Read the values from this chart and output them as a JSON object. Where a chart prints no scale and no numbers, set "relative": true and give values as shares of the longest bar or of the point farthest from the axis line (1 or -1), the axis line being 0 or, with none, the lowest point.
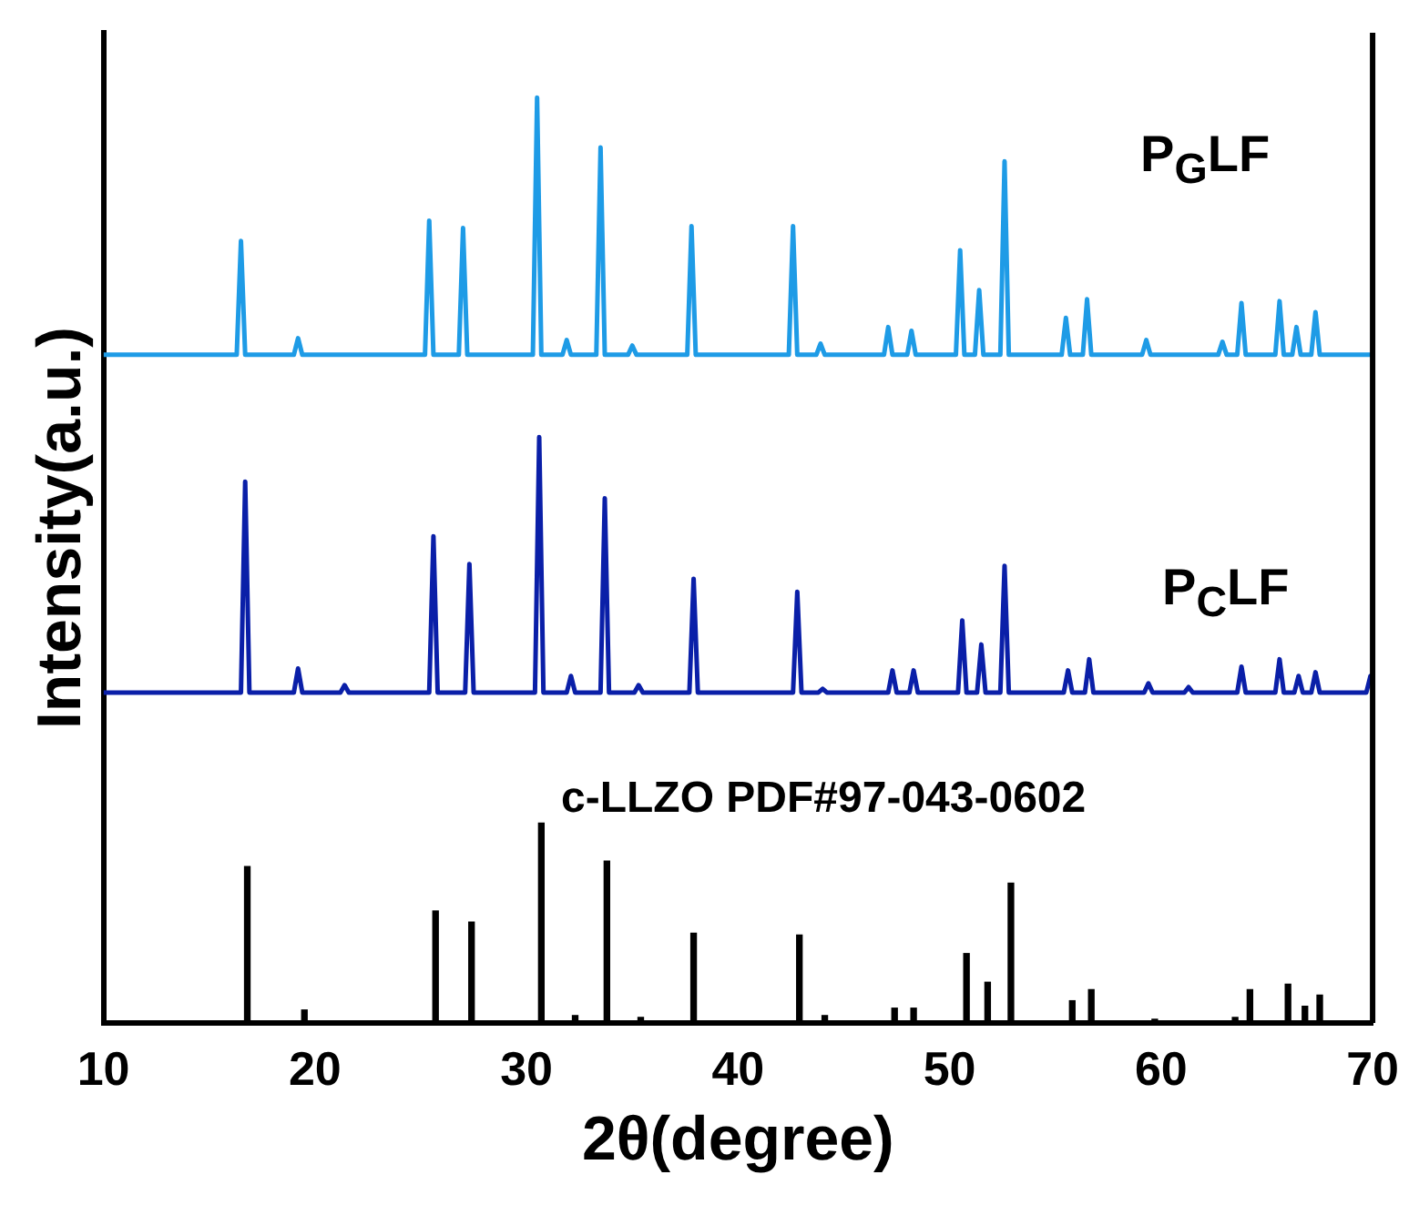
{
  "chart_data": {
    "type": "line",
    "xlabel": "2θ(degree)",
    "ylabel": "Intensity(a.u.)",
    "relative": true,
    "xlim": [
      10,
      70
    ],
    "xticks": [
      10,
      20,
      30,
      40,
      50,
      60,
      70
    ],
    "grid": false,
    "legend": false,
    "marker": "none",
    "line_style": "solid",
    "series": [
      {
        "name": "P$_{G}$LF",
        "color": "#1e9be6",
        "x": [
          10,
          16.3,
          16.5,
          16.7,
          19.0,
          19.2,
          19.4,
          25.2,
          25.4,
          25.6,
          26.8,
          27.0,
          27.2,
          30.3,
          30.5,
          30.7,
          31.7,
          31.9,
          32.1,
          33.3,
          33.5,
          33.7,
          34.8,
          35.0,
          35.2,
          37.6,
          37.8,
          38.0,
          42.4,
          42.6,
          42.8,
          43.7,
          43.9,
          44.1,
          46.9,
          47.1,
          47.3,
          48.0,
          48.2,
          48.4,
          50.3,
          50.5,
          50.7,
          51.2,
          51.4,
          51.6,
          52.4,
          52.6,
          52.8,
          55.3,
          55.5,
          55.7,
          56.3,
          56.5,
          56.7,
          59.1,
          59.3,
          59.5,
          62.7,
          62.9,
          63.1,
          63.6,
          63.8,
          64.0,
          65.4,
          65.6,
          65.8,
          66.2,
          66.4,
          66.6,
          67.1,
          67.3,
          67.5,
          70
        ],
        "values": [
          0.722,
          0.722,
          0.845,
          0.722,
          0.722,
          0.74,
          0.722,
          0.722,
          0.867,
          0.722,
          0.722,
          0.859,
          0.722,
          0.722,
          1,
          0.722,
          0.722,
          0.738,
          0.722,
          0.722,
          0.946,
          0.722,
          0.722,
          0.732,
          0.722,
          0.722,
          0.861,
          0.722,
          0.722,
          0.861,
          0.722,
          0.722,
          0.734,
          0.722,
          0.722,
          0.752,
          0.722,
          0.722,
          0.748,
          0.722,
          0.722,
          0.835,
          0.722,
          0.722,
          0.792,
          0.722,
          0.722,
          0.931,
          0.722,
          0.722,
          0.762,
          0.722,
          0.722,
          0.782,
          0.722,
          0.722,
          0.738,
          0.722,
          0.722,
          0.736,
          0.722,
          0.722,
          0.778,
          0.722,
          0.722,
          0.78,
          0.722,
          0.722,
          0.752,
          0.722,
          0.722,
          0.768,
          0.722,
          0.722
        ]
      },
      {
        "name": "P$_{C}$LF",
        "color": "#0a1fa8",
        "x": [
          10,
          16.5,
          16.7,
          16.9,
          19.0,
          19.2,
          19.4,
          21.2,
          21.4,
          21.6,
          25.4,
          25.6,
          25.8,
          27.1,
          27.3,
          27.5,
          30.4,
          30.6,
          30.8,
          31.9,
          32.1,
          32.3,
          33.5,
          33.7,
          33.9,
          35.1,
          35.3,
          35.5,
          37.7,
          37.9,
          38.1,
          42.6,
          42.8,
          43.0,
          43.8,
          44.0,
          44.2,
          47.1,
          47.3,
          47.5,
          48.1,
          48.3,
          48.5,
          50.4,
          50.6,
          50.8,
          51.3,
          51.5,
          51.7,
          52.4,
          52.6,
          52.8,
          55.4,
          55.6,
          55.8,
          56.4,
          56.6,
          56.8,
          59.2,
          59.4,
          59.6,
          61.1,
          61.3,
          61.5,
          63.6,
          63.8,
          64.0,
          65.4,
          65.6,
          65.8,
          66.3,
          66.5,
          66.7,
          67.1,
          67.3,
          67.5,
          69.7,
          69.9,
          70
        ],
        "values": [
          0.357,
          0.357,
          0.585,
          0.357,
          0.357,
          0.383,
          0.357,
          0.357,
          0.365,
          0.357,
          0.357,
          0.526,
          0.357,
          0.357,
          0.496,
          0.357,
          0.357,
          0.633,
          0.357,
          0.357,
          0.375,
          0.357,
          0.357,
          0.567,
          0.357,
          0.357,
          0.365,
          0.357,
          0.357,
          0.48,
          0.357,
          0.357,
          0.466,
          0.357,
          0.357,
          0.361,
          0.357,
          0.357,
          0.381,
          0.357,
          0.357,
          0.381,
          0.357,
          0.357,
          0.435,
          0.357,
          0.357,
          0.409,
          0.357,
          0.357,
          0.494,
          0.357,
          0.357,
          0.381,
          0.357,
          0.357,
          0.393,
          0.357,
          0.357,
          0.367,
          0.357,
          0.357,
          0.363,
          0.357,
          0.357,
          0.385,
          0.357,
          0.357,
          0.393,
          0.357,
          0.357,
          0.375,
          0.357,
          0.357,
          0.379,
          0.357,
          0.357,
          0.375,
          0.37
        ]
      },
      {
        "name": "c-LLZO PDF#97-043-0602",
        "type": "bar",
        "color": "#000000",
        "x": [
          16.8,
          19.5,
          25.7,
          27.4,
          30.7,
          32.3,
          33.8,
          35.4,
          37.9,
          42.9,
          44.1,
          47.4,
          48.3,
          50.8,
          51.8,
          52.9,
          55.8,
          56.7,
          59.7,
          63.5,
          64.2,
          66.0,
          66.8,
          67.5
        ],
        "values": [
          0.169,
          0.014,
          0.121,
          0.109,
          0.216,
          0.008,
          0.175,
          0.006,
          0.097,
          0.095,
          0.008,
          0.016,
          0.016,
          0.075,
          0.044,
          0.151,
          0.024,
          0.036,
          0.004,
          0.006,
          0.036,
          0.042,
          0.018,
          0.03
        ]
      }
    ]
  }
}
